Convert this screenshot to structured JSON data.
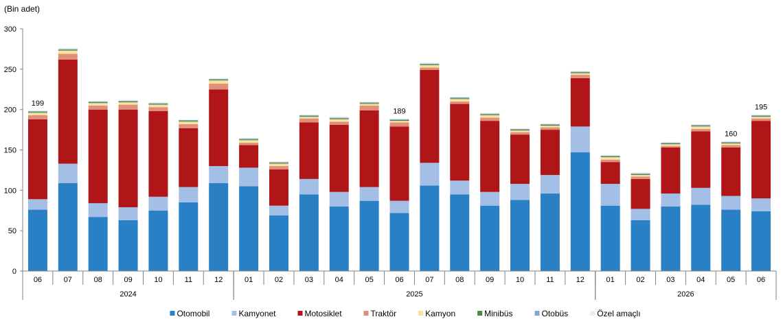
{
  "chart_data": {
    "type": "bar",
    "stacked": true,
    "unit_label": "(Bin adet)",
    "ylim": [
      0,
      300
    ],
    "yticks": [
      0,
      50,
      100,
      150,
      200,
      250,
      300
    ],
    "grid": false,
    "legend_position": "bottom",
    "categories": [
      "06",
      "07",
      "08",
      "09",
      "10",
      "11",
      "12",
      "01",
      "02",
      "03",
      "04",
      "05",
      "06",
      "07",
      "08",
      "09",
      "10",
      "11",
      "12",
      "01",
      "02",
      "03",
      "04",
      "05",
      "06"
    ],
    "year_groups": [
      {
        "label": "2024",
        "start": 0,
        "end": 6
      },
      {
        "label": "2025",
        "start": 7,
        "end": 18
      },
      {
        "label": "2026",
        "start": 19,
        "end": 24
      }
    ],
    "series": [
      {
        "name": "Otomobil",
        "color": "#2a80c4",
        "values": [
          76,
          109,
          67,
          63,
          75,
          85,
          109,
          105,
          69,
          95,
          80,
          87,
          72,
          106,
          95,
          81,
          88,
          96,
          147,
          81,
          63,
          80,
          82,
          76,
          74
        ]
      },
      {
        "name": "Kamyonet",
        "color": "#a3bfe6",
        "values": [
          13,
          24,
          17,
          16,
          17,
          19,
          21,
          23,
          12,
          19,
          18,
          17,
          15,
          28,
          17,
          17,
          20,
          23,
          32,
          27,
          14,
          16,
          21,
          17,
          16
        ]
      },
      {
        "name": "Motosiklet",
        "color": "#b01518",
        "values": [
          99,
          129,
          116,
          121,
          106,
          73,
          95,
          28,
          45,
          70,
          83,
          95,
          92,
          115,
          95,
          88,
          61,
          56,
          60,
          27,
          37,
          57,
          70,
          60,
          96
        ]
      },
      {
        "name": "Traktör",
        "color": "#e0907a",
        "values": [
          5,
          7,
          5,
          6,
          5,
          5,
          7,
          3,
          4,
          5,
          4,
          6,
          5,
          3,
          3,
          4,
          3,
          3,
          4,
          3,
          3,
          2,
          3,
          3,
          3
        ]
      },
      {
        "name": "Kamyon",
        "color": "#fde0a0",
        "values": [
          3,
          4,
          3,
          3,
          3,
          3,
          4,
          3,
          3,
          2,
          3,
          2,
          2,
          3,
          3,
          3,
          2,
          2,
          2,
          3,
          2,
          2,
          3,
          2,
          2
        ]
      },
      {
        "name": "Minibüs",
        "color": "#4e8a3e",
        "values": [
          1,
          1,
          1,
          1,
          1,
          1,
          1,
          1,
          1,
          1,
          1,
          1,
          1,
          1,
          1,
          1,
          1,
          1,
          1,
          1,
          1,
          1,
          1,
          1,
          1
        ]
      },
      {
        "name": "Otobüs",
        "color": "#7fa8d6",
        "values": [
          1,
          1,
          1,
          1,
          1,
          1,
          1,
          1,
          1,
          1,
          1,
          1,
          1,
          1,
          1,
          1,
          1,
          1,
          1,
          1,
          1,
          1,
          1,
          1,
          1
        ]
      },
      {
        "name": "Özel amaçlı",
        "color": "#efefe0",
        "values": [
          1,
          1,
          1,
          1,
          1,
          1,
          1,
          1,
          1,
          1,
          1,
          1,
          1,
          1,
          1,
          1,
          1,
          1,
          1,
          1,
          1,
          1,
          1,
          1,
          1
        ]
      }
    ],
    "data_labels": [
      {
        "index": 0,
        "text": "199"
      },
      {
        "index": 12,
        "text": "189"
      },
      {
        "index": 23,
        "text": "160"
      },
      {
        "index": 24,
        "text": "195"
      }
    ]
  }
}
